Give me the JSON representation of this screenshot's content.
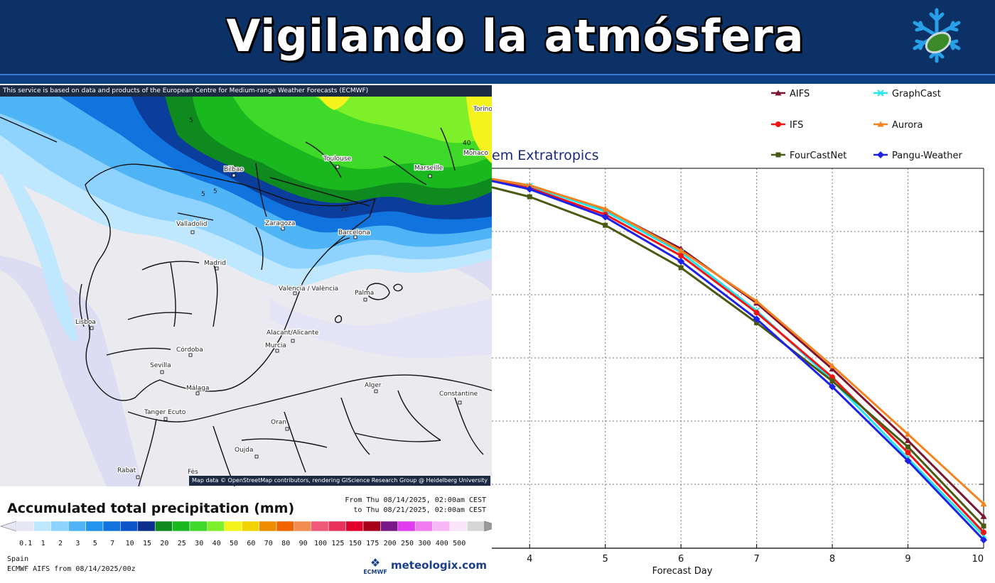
{
  "banner": {
    "title": "Vigilando la atmósfera",
    "background": "#0b3167",
    "logo_icon": "snowflake-leaf-icon"
  },
  "map": {
    "attribution": "This service is based on data and products of the European Centre for Medium-range Weather Forecasts (ECMWF)",
    "credit": "Map data © OpenStreetMap contributors, rendering GIScience Research Group @ Heidelberg University",
    "cities": [
      "Bilbao",
      "Toulouse",
      "Marseille",
      "Monaco",
      "Torino",
      "Valladolid",
      "Zaragoza",
      "Barcelona",
      "Madrid",
      "Valencia / València",
      "Palma",
      "Lisboa",
      "Alacant/Alicante",
      "Murcia",
      "Córdoba",
      "Sevilla",
      "Málaga",
      "Tanger Ecuto",
      "Alger",
      "Constantine",
      "Oran",
      "Oujda",
      "Rabat",
      "Fès"
    ],
    "contour_labels": [
      "5",
      "5",
      "5",
      "20",
      "40"
    ]
  },
  "legend": {
    "title": "Accumulated total precipitation (mm)",
    "period_from": "From Thu 08/14/2025, 02:00am CEST",
    "period_to": "to Thu 08/21/2025, 02:00am CEST",
    "ticks": [
      "0.1",
      "1",
      "2",
      "3",
      "5",
      "7",
      "10",
      "15",
      "20",
      "25",
      "30",
      "40",
      "50",
      "60",
      "70",
      "80",
      "90",
      "100",
      "125",
      "150",
      "175",
      "200",
      "250",
      "300",
      "400",
      "500"
    ],
    "colors": [
      "#e6e6f5",
      "#bfe8ff",
      "#8ed3ff",
      "#4fb4f5",
      "#2294ee",
      "#1173dd",
      "#0b55c8",
      "#0a2f8c",
      "#0f8a1e",
      "#19b81f",
      "#3fd92a",
      "#7ef02a",
      "#f4f41c",
      "#f2d400",
      "#f08c00",
      "#f26400",
      "#f28c50",
      "#f05a78",
      "#e8305a",
      "#e0002a",
      "#a8001a",
      "#7a1a8a",
      "#e03cf0",
      "#f07cf0",
      "#f8b8f8",
      "#fae4fa",
      "#d6d6d6"
    ],
    "region": "Spain",
    "model": "ECMWF AIFS from 08/14/2025/00z",
    "ecmwf_logo_text": "ECMWF",
    "brand": "meteologix.com"
  },
  "chart_data": {
    "type": "line",
    "title": "em Extratropics",
    "xlabel": "Forecast Day",
    "ylabel": "",
    "x": [
      3.5,
      4,
      5,
      6,
      7,
      8,
      9,
      10
    ],
    "x_ticks": [
      4,
      5,
      6,
      7,
      8,
      9,
      10
    ],
    "xlim": [
      3.5,
      10
    ],
    "ylim": [
      0.4,
      1.0
    ],
    "grid": true,
    "legend_position": "top",
    "series": [
      {
        "name": "AIFS",
        "color": "#7b1530",
        "values": [
          0.983,
          0.973,
          0.935,
          0.873,
          0.787,
          0.683,
          0.57,
          0.45
        ]
      },
      {
        "name": "GraphCast",
        "color": "#22e6ee",
        "values": [
          0.982,
          0.972,
          0.932,
          0.867,
          0.775,
          0.665,
          0.542,
          0.42
        ]
      },
      {
        "name": "IFS",
        "color": "#f01414",
        "values": [
          0.98,
          0.969,
          0.927,
          0.862,
          0.772,
          0.67,
          0.551,
          0.425
        ]
      },
      {
        "name": "Aurora",
        "color": "#f5821e",
        "values": [
          0.983,
          0.973,
          0.936,
          0.87,
          0.79,
          0.688,
          0.58,
          0.47
        ]
      },
      {
        "name": "FourCastNet",
        "color": "#4b5a12",
        "values": [
          0.97,
          0.955,
          0.91,
          0.843,
          0.756,
          0.664,
          0.56,
          0.435
        ]
      },
      {
        "name": "Pangu-Weather",
        "color": "#1e22e6",
        "values": [
          0.98,
          0.967,
          0.923,
          0.853,
          0.762,
          0.655,
          0.538,
          0.413
        ]
      }
    ]
  }
}
